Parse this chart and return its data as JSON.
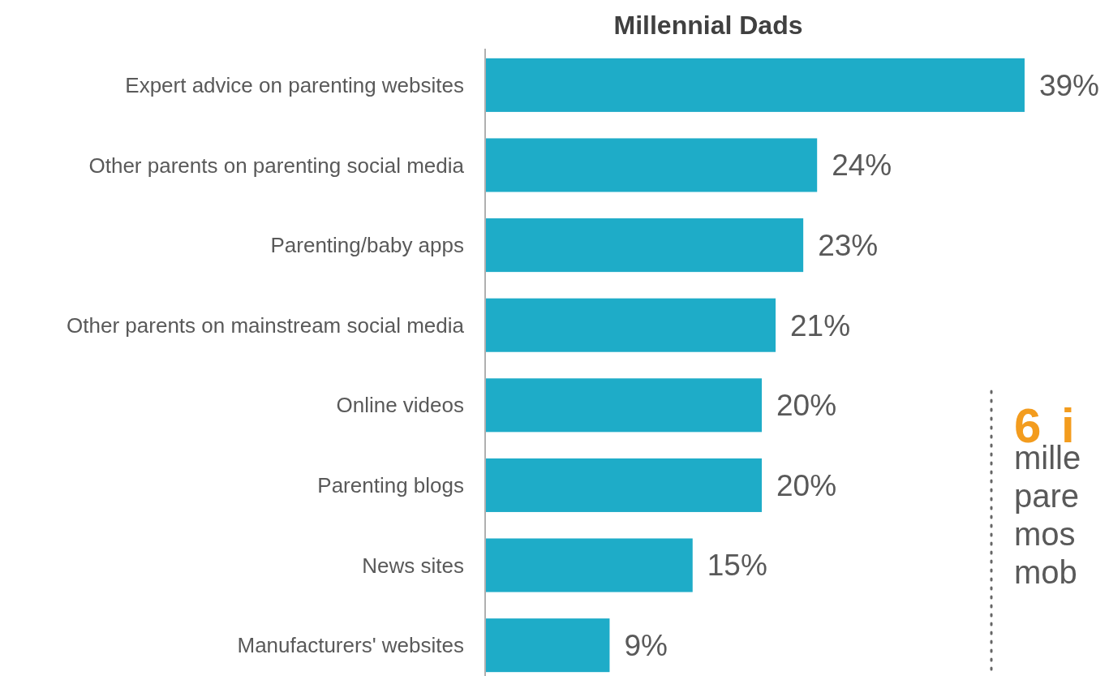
{
  "chart_data": {
    "type": "bar",
    "orientation": "horizontal",
    "title": "Millennial Dads",
    "categories": [
      "Expert advice on parenting websites",
      "Other parents on parenting social media",
      "Parenting/baby apps",
      "Other parents on mainstream social media",
      "Online videos",
      "Parenting blogs",
      "News sites",
      "Manufacturers' websites"
    ],
    "values": [
      39,
      24,
      23,
      21,
      20,
      20,
      15,
      9
    ],
    "color": "#1eacc8",
    "value_labels": [
      "39%",
      "24%",
      "23%",
      "21%",
      "20%",
      "20%",
      "15%",
      "9%"
    ],
    "annotations": [
      "6 i",
      "mille",
      "pare",
      "mos",
      "mob"
    ]
  }
}
